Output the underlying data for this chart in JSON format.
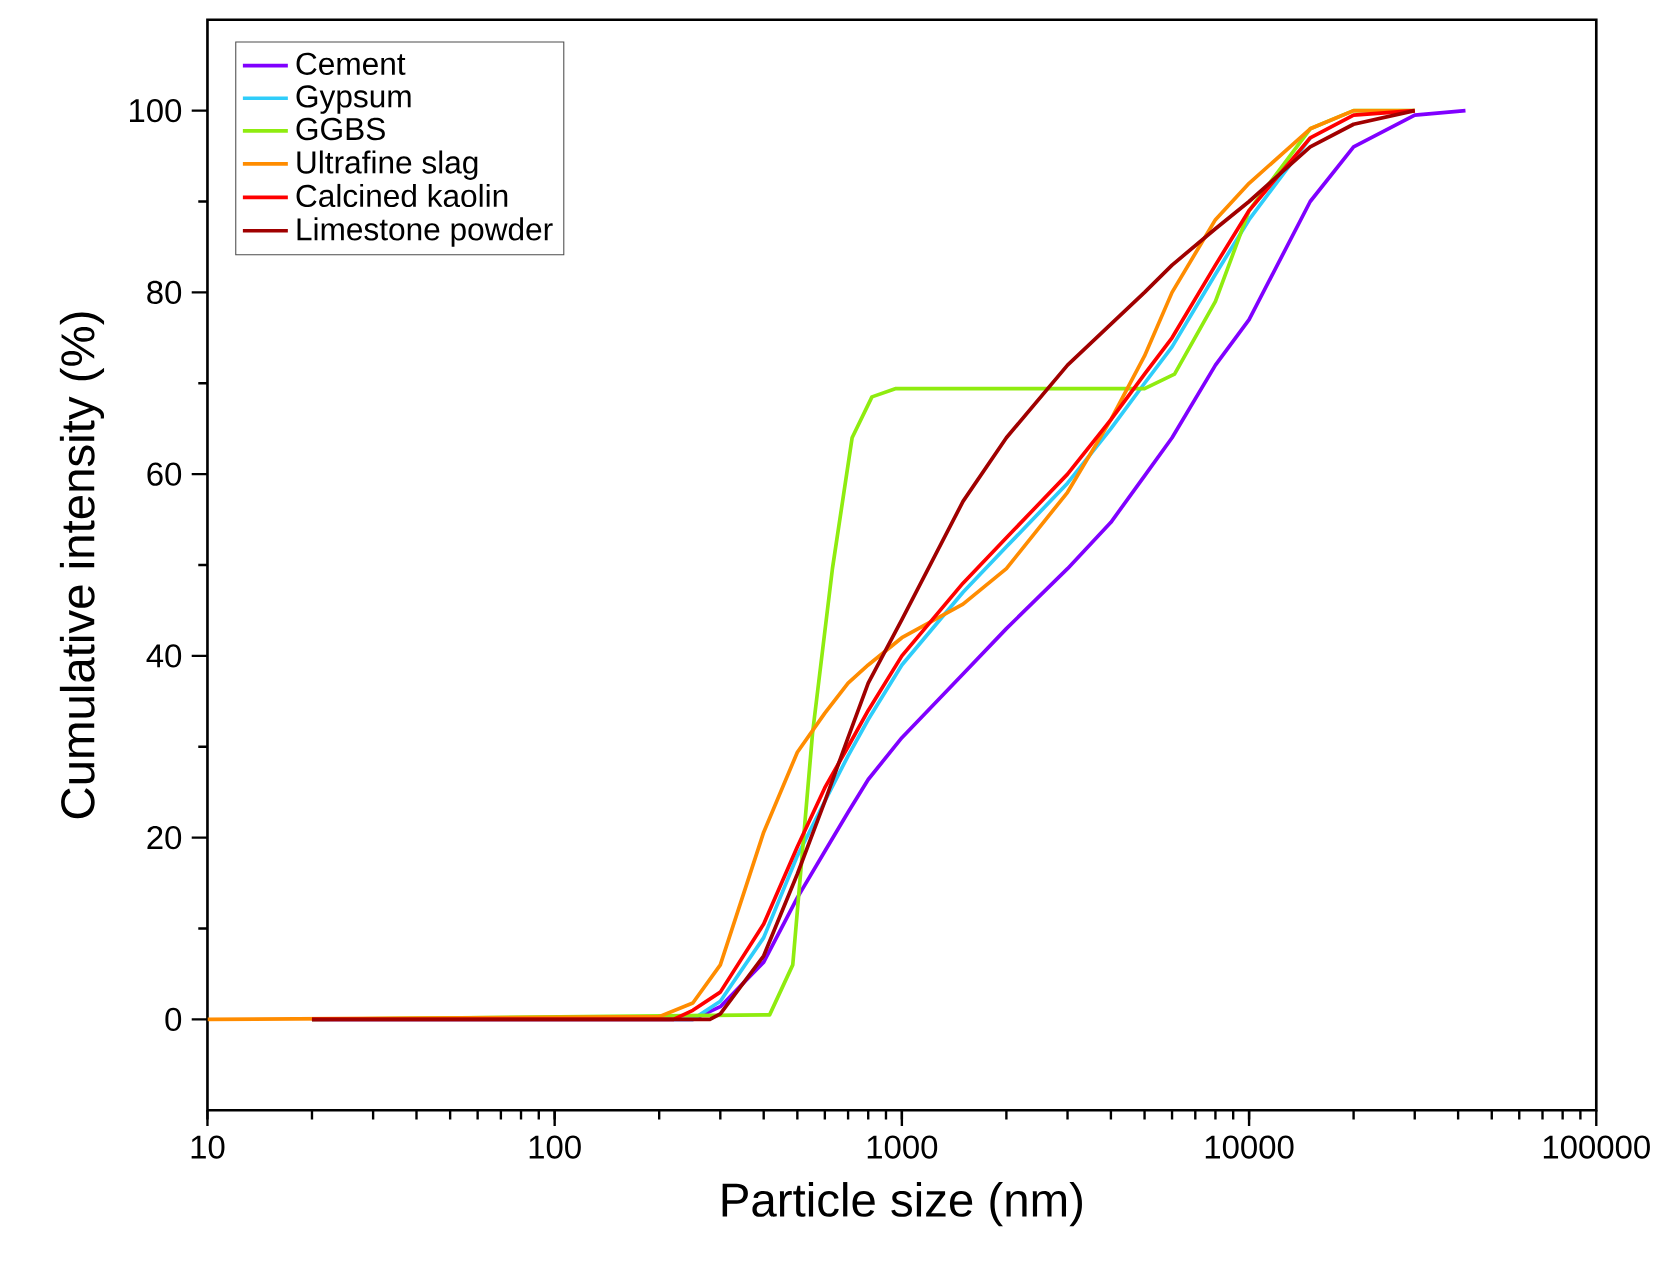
{
  "chart_data": {
    "type": "line",
    "xlabel": "Particle size (nm)",
    "ylabel": "Cumulative intensity (%)",
    "log": "x",
    "xlim": [
      10,
      100000
    ],
    "ylim": [
      -10,
      110
    ],
    "xticks": [
      10,
      100,
      1000,
      10000,
      100000
    ],
    "yticks": [
      0,
      20,
      40,
      60,
      80,
      100
    ],
    "grid": false,
    "legend": "top left",
    "marker": "none",
    "line_style": "solid",
    "series": [
      {
        "name": "Cement",
        "color": "#8000ff",
        "x": [
          20,
          250,
          300,
          400,
          500,
          600,
          700,
          800,
          1000,
          1500,
          2000,
          3000,
          4000,
          5000,
          6000,
          8000,
          10000,
          15000,
          20000,
          30000,
          42000
        ],
        "values": [
          0,
          0,
          1.4,
          6.3,
          13.4,
          18.5,
          22.8,
          26.4,
          31,
          38,
          43,
          49.6,
          54.7,
          59.8,
          64,
          72,
          77,
          90,
          96,
          99.5,
          100
        ]
      },
      {
        "name": "Gypsum",
        "color": "#2fcdfa",
        "x": [
          20,
          250,
          300,
          400,
          500,
          600,
          700,
          800,
          1000,
          1500,
          2000,
          3000,
          4000,
          5000,
          6000,
          8000,
          10000,
          15000
        ],
        "values": [
          0,
          0,
          2,
          9,
          18,
          24,
          29,
          33,
          39,
          47,
          52,
          59,
          65,
          70,
          74,
          82,
          88,
          97
        ]
      },
      {
        "name": "GGBS",
        "color": "#8fec0f",
        "x": [
          20,
          416,
          485,
          553,
          631,
          719,
          820,
          957,
          2000,
          5000,
          6100,
          8000,
          10000,
          15000,
          20000,
          30000
        ],
        "values": [
          0,
          0.5,
          6,
          31.5,
          49.6,
          64,
          68.5,
          69.4,
          69.4,
          69.4,
          71,
          79,
          89,
          98,
          100,
          100
        ]
      },
      {
        "name": "Ultrafine slag",
        "color": "#ff8c00",
        "x": [
          10,
          200,
          250,
          300,
          400,
          500,
          600,
          700,
          800,
          1000,
          1500,
          2000,
          3000,
          4000,
          5000,
          6000,
          8000,
          10000,
          15000,
          20000,
          30000
        ],
        "values": [
          0,
          0.3,
          1.8,
          6,
          20.6,
          29.4,
          33.7,
          37,
          39,
          42,
          45.7,
          49.6,
          58,
          66,
          73,
          80,
          88,
          92,
          98,
          100,
          100
        ]
      },
      {
        "name": "Calcined kaolin",
        "color": "#ff0000",
        "x": [
          20,
          220,
          250,
          300,
          400,
          500,
          600,
          700,
          800,
          1000,
          1500,
          2000,
          3000,
          4000,
          5000,
          6000,
          8000,
          10000,
          15000,
          20000,
          30000
        ],
        "values": [
          0,
          0,
          1,
          3,
          10.5,
          19,
          25.5,
          30,
          34,
          40,
          48,
          53,
          60,
          66,
          71,
          75,
          83,
          89,
          97,
          99.5,
          100
        ]
      },
      {
        "name": "Limestone powder",
        "color": "#a00000",
        "x": [
          20,
          280,
          300,
          400,
          500,
          600,
          700,
          800,
          1000,
          1500,
          2000,
          3000,
          4000,
          5000,
          6000,
          8000,
          10000,
          15000,
          20000,
          30000
        ],
        "values": [
          0,
          0,
          0.6,
          7,
          16,
          24,
          31,
          37,
          44,
          57,
          64,
          72,
          76.5,
          80,
          83,
          87,
          90,
          96,
          98.5,
          100
        ]
      }
    ]
  }
}
